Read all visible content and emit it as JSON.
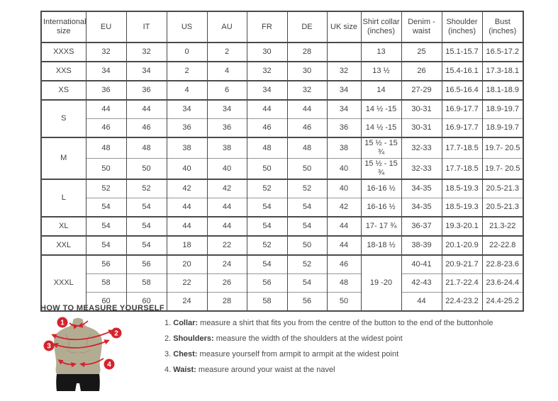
{
  "accent_color": "#d5232e",
  "body_color": "#b2ad92",
  "table": {
    "headers": [
      "International size",
      "EU",
      "IT",
      "US",
      "AU",
      "FR",
      "DE",
      "UK size",
      "Shirt collar (inches)",
      "Denim - waist",
      "Shoulder (inches)",
      "Bust (inches)"
    ],
    "rows": [
      [
        {
          "t": "XXXS"
        },
        "32",
        "32",
        "0",
        "2",
        "30",
        "28",
        "",
        "13",
        "25",
        "15.1-15.7",
        "16.5-17.2"
      ],
      [
        {
          "t": "XXS"
        },
        "34",
        "34",
        "2",
        "4",
        "32",
        "30",
        "32",
        "13 ½",
        "26",
        "15.4-16.1",
        "17.3-18.1"
      ],
      [
        {
          "t": "XS"
        },
        "36",
        "36",
        "4",
        "6",
        "34",
        "32",
        "34",
        "14",
        "27-29",
        "16.5-16.4",
        "18.1-18.9"
      ],
      [
        {
          "t": "S",
          "rs": 2
        },
        "44",
        "44",
        "34",
        "34",
        "44",
        "44",
        "34",
        "14 ½ -15",
        "30-31",
        "16.9-17.7",
        "18.9-19.7"
      ],
      [
        "46",
        "46",
        "36",
        "36",
        "46",
        "46",
        "36",
        "14 ½ -15",
        "30-31",
        "16.9-17.7",
        "18.9-19.7"
      ],
      [
        {
          "t": "M",
          "rs": 2
        },
        "48",
        "48",
        "38",
        "38",
        "48",
        "48",
        "38",
        "15 ½ - 15 ¾",
        "32-33",
        "17.7-18.5",
        "19.7- 20.5"
      ],
      [
        "50",
        "50",
        "40",
        "40",
        "50",
        "50",
        "40",
        "15 ½ - 15 ¾",
        "32-33",
        "17.7-18.5",
        "19.7- 20.5"
      ],
      [
        {
          "t": "L",
          "rs": 2
        },
        "52",
        "52",
        "42",
        "42",
        "52",
        "52",
        "40",
        "16-16 ½",
        "34-35",
        "18.5-19.3",
        "20.5-21.3"
      ],
      [
        "54",
        "54",
        "44",
        "44",
        "54",
        "54",
        "42",
        "16-16 ½",
        "34-35",
        "18.5-19.3",
        "20.5-21.3"
      ],
      [
        {
          "t": "XL"
        },
        "54",
        "54",
        "44",
        "44",
        "54",
        "54",
        "44",
        "17- 17 ¾",
        "36-37",
        "19.3-20.1",
        "21.3-22"
      ],
      [
        {
          "t": "XXL"
        },
        "54",
        "54",
        "18",
        "22",
        "52",
        "50",
        "44",
        "18-18 ½",
        "38-39",
        "20.1-20.9",
        "22-22.8"
      ],
      [
        {
          "t": "XXXL",
          "rs": 3
        },
        "56",
        "56",
        "20",
        "24",
        "54",
        "52",
        "46",
        {
          "t": "19 -20",
          "rs": 3
        },
        "40-41",
        "20.9-21.7",
        "22.8-23.6"
      ],
      [
        "58",
        "58",
        "22",
        "26",
        "56",
        "54",
        "48",
        "42-43",
        "21.7-22.4",
        "23.6-24.4"
      ],
      [
        "60",
        "60",
        "24",
        "28",
        "58",
        "56",
        "50",
        "44",
        "22.4-23.2",
        "24.4-25.2"
      ]
    ]
  },
  "measure": {
    "heading": "HOW TO MEASURE YOURSELF",
    "items": [
      {
        "num": "1.",
        "label": "Collar:",
        "text": " measure a shirt that fits you from the centre of the button to the end of the buttonhole"
      },
      {
        "num": "2.",
        "label": "Shoulders:",
        "text": " measure the width of the shoulders at the widest point"
      },
      {
        "num": "3.",
        "label": "Chest:",
        "text": " measure yourself from armpit to armpit at the widest point"
      },
      {
        "num": "4.",
        "label": "Waist:",
        "text": " measure around your waist at the navel"
      }
    ],
    "markers": [
      "1",
      "2",
      "3",
      "4"
    ]
  }
}
